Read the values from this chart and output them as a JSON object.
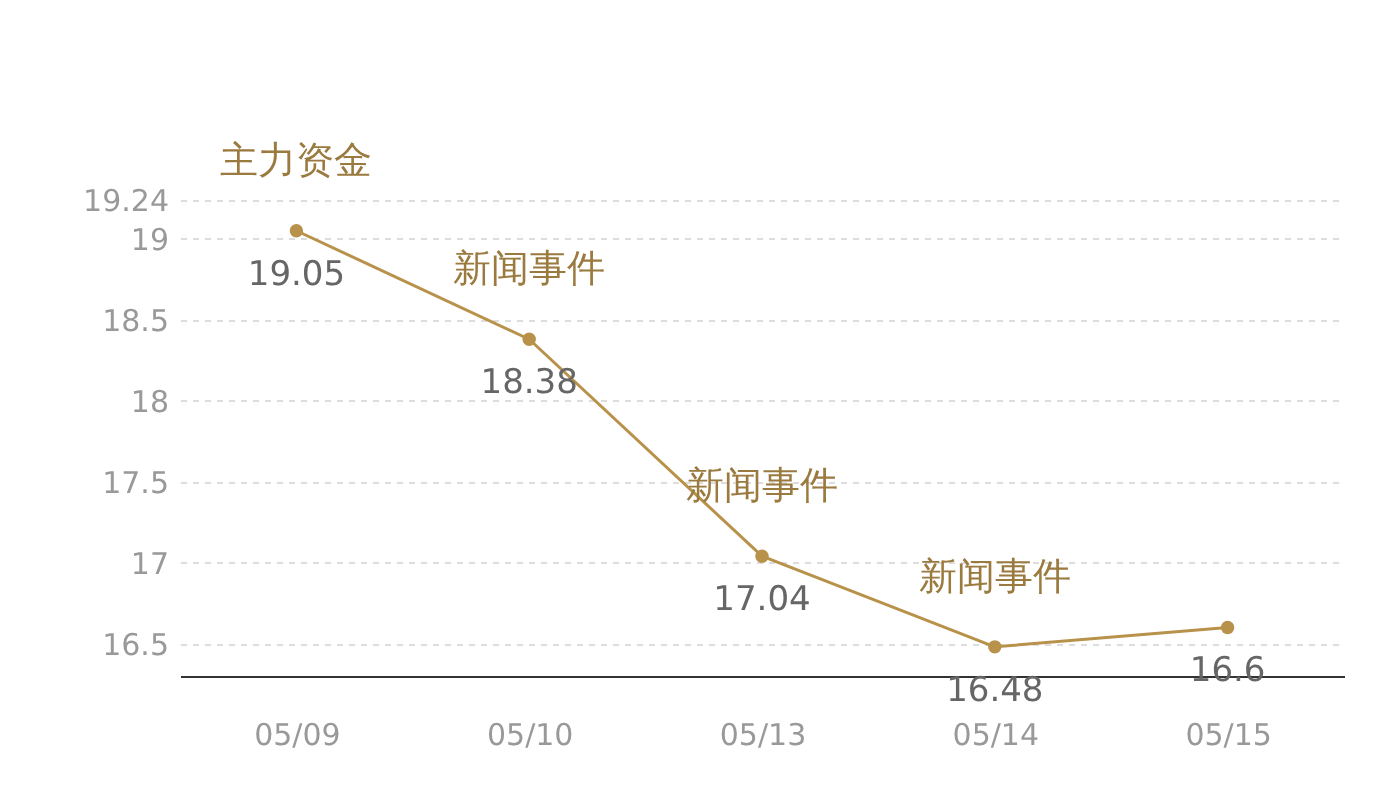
{
  "chart_data": {
    "type": "line",
    "categories": [
      "05/09",
      "05/10",
      "05/13",
      "05/14",
      "05/15"
    ],
    "series": [
      {
        "color": "#b8924a",
        "values": [
          19.05,
          18.38,
          17.04,
          16.48,
          16.6
        ]
      }
    ],
    "ylim": [
      16.3,
      19.24
    ],
    "yticks": [
      16.5,
      17,
      17.5,
      18,
      18.5,
      19,
      19.24
    ],
    "grid": "y",
    "marker": "circle",
    "line_style": "solid",
    "data_labels": true,
    "annotations": [
      {
        "text": "主力资金",
        "x": "05/09",
        "y": 19.05
      },
      {
        "text": "新闻事件",
        "x": "05/10",
        "y": 18.38
      },
      {
        "text": "新闻事件",
        "x": "05/13",
        "y": 17.04
      },
      {
        "text": "新闻事件",
        "x": "05/14",
        "y": 16.48
      }
    ]
  }
}
